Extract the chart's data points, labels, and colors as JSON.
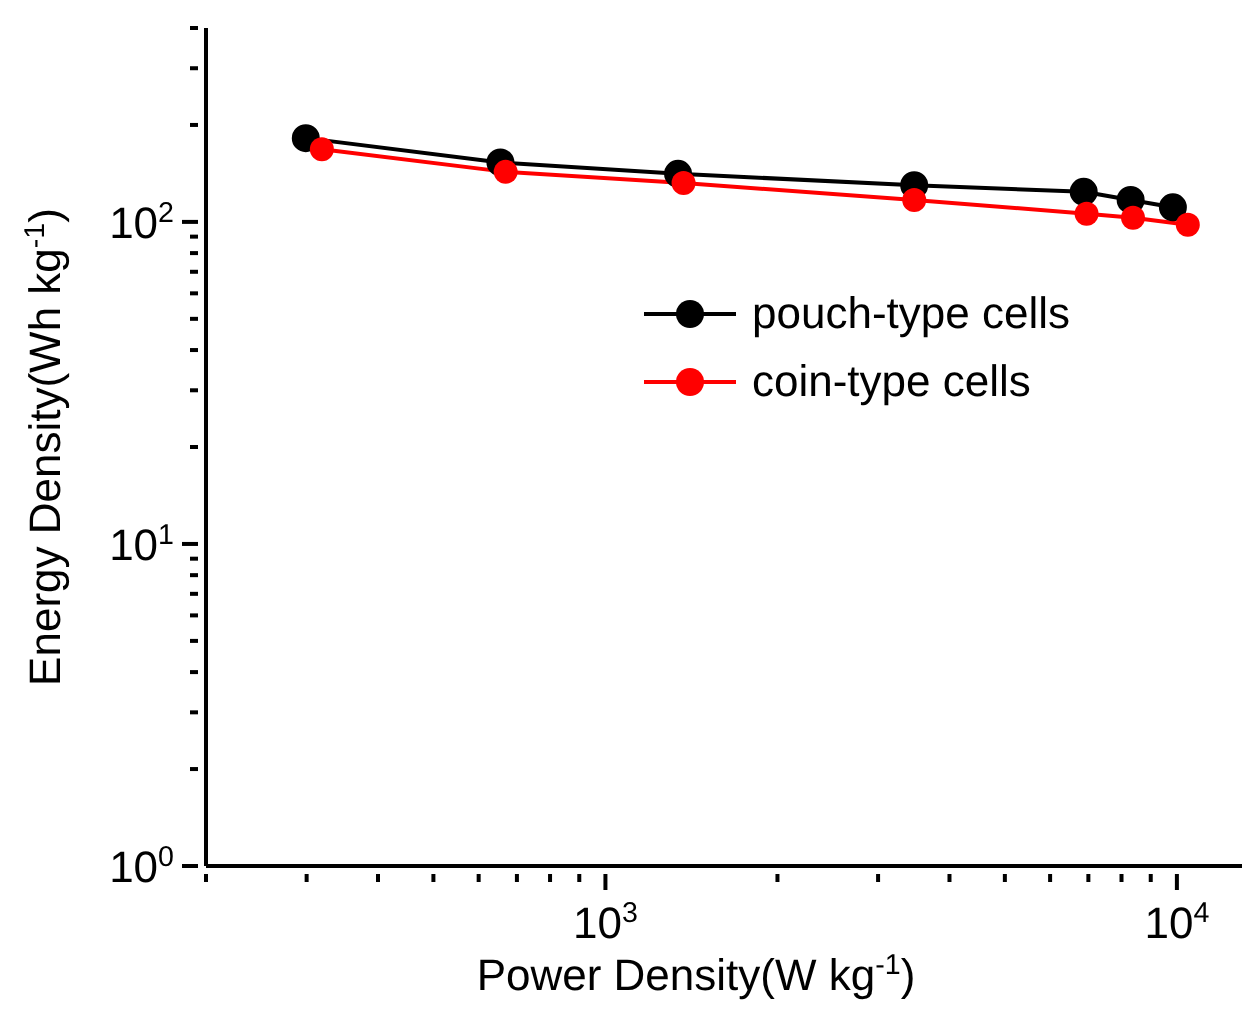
{
  "chart_data": {
    "type": "line",
    "xlabel": "Power Density(W kg$^{-1}$)",
    "ylabel": "Energy Density(Wh kg$^{-1}$)",
    "log": "xy",
    "legend": "right",
    "marker": "circle",
    "line_style": "solid",
    "xlim": [
      200,
      13000
    ],
    "xticks": [
      {
        "value": 200,
        "label": null
      },
      {
        "value": 300,
        "label": null
      },
      {
        "value": 400,
        "label": null
      },
      {
        "value": 500,
        "label": null
      },
      {
        "value": 600,
        "label": null
      },
      {
        "value": 700,
        "label": null
      },
      {
        "value": 800,
        "label": null
      },
      {
        "value": 900,
        "label": null
      },
      {
        "value": 1000,
        "label": "10$^{3}$"
      },
      {
        "value": 2000,
        "label": null
      },
      {
        "value": 3000,
        "label": null
      },
      {
        "value": 4000,
        "label": null
      },
      {
        "value": 5000,
        "label": null
      },
      {
        "value": 6000,
        "label": null
      },
      {
        "value": 7000,
        "label": null
      },
      {
        "value": 8000,
        "label": null
      },
      {
        "value": 9000,
        "label": null
      },
      {
        "value": 10000,
        "label": "10$^{4}$"
      }
    ],
    "ylim": [
      1,
      400
    ],
    "yticks": [
      {
        "value": 1,
        "label": "10$^{0}$"
      },
      {
        "value": 2,
        "label": null
      },
      {
        "value": 3,
        "label": null
      },
      {
        "value": 4,
        "label": null
      },
      {
        "value": 5,
        "label": null
      },
      {
        "value": 6,
        "label": null
      },
      {
        "value": 7,
        "label": null
      },
      {
        "value": 8,
        "label": null
      },
      {
        "value": 9,
        "label": null
      },
      {
        "value": 10,
        "label": "10$^{1}$"
      },
      {
        "value": 20,
        "label": null
      },
      {
        "value": 30,
        "label": null
      },
      {
        "value": 40,
        "label": null
      },
      {
        "value": 50,
        "label": null
      },
      {
        "value": 60,
        "label": null
      },
      {
        "value": 70,
        "label": null
      },
      {
        "value": 80,
        "label": null
      },
      {
        "value": 90,
        "label": null
      },
      {
        "value": 100,
        "label": "10$^{2}$"
      },
      {
        "value": 200,
        "label": null
      },
      {
        "value": 300,
        "label": null
      },
      {
        "value": 400,
        "label": null
      }
    ],
    "series": [
      {
        "name": "pouch-type cells",
        "color": "#000000",
        "x": [
          299,
          655,
          1340,
          3470,
          6870,
          8300,
          9840
        ],
        "values": [
          182,
          153,
          141,
          130,
          124,
          117,
          111
        ]
      },
      {
        "name": "coin-type cells",
        "color": "#ff0000",
        "x": [
          319,
          669,
          1370,
          3470,
          6950,
          8380,
          10450
        ],
        "values": [
          168,
          143,
          132,
          117,
          106,
          103,
          98
        ]
      }
    ]
  }
}
